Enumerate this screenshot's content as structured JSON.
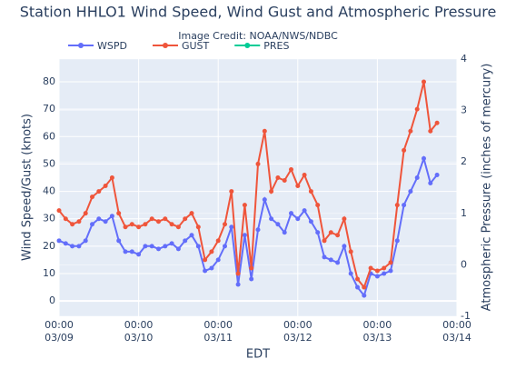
{
  "chart_data": {
    "type": "line",
    "title": "Station HHLO1 Wind Speed, Wind Gust and Atmospheric Pressure",
    "annotation": "Image Credit: NOAA/NWS/NDBC",
    "x_label": "EDT",
    "y_label": "Wind Speed/Gust (knots)",
    "y2_label": "Atmospheric Pressure (inches of mercury)",
    "x": [
      "03/09 00:00",
      "03/09 02:00",
      "03/09 04:00",
      "03/09 06:00",
      "03/09 08:00",
      "03/09 10:00",
      "03/09 12:00",
      "03/09 14:00",
      "03/09 16:00",
      "03/09 18:00",
      "03/09 20:00",
      "03/09 22:00",
      "03/10 00:00",
      "03/10 02:00",
      "03/10 04:00",
      "03/10 06:00",
      "03/10 08:00",
      "03/10 10:00",
      "03/10 12:00",
      "03/10 14:00",
      "03/10 16:00",
      "03/10 18:00",
      "03/10 20:00",
      "03/10 22:00",
      "03/11 00:00",
      "03/11 02:00",
      "03/11 04:00",
      "03/11 06:00",
      "03/11 08:00",
      "03/11 10:00",
      "03/11 12:00",
      "03/11 14:00",
      "03/11 16:00",
      "03/11 18:00",
      "03/11 20:00",
      "03/11 22:00",
      "03/12 00:00",
      "03/12 02:00",
      "03/12 04:00",
      "03/12 06:00",
      "03/12 08:00",
      "03/12 10:00",
      "03/12 12:00",
      "03/12 14:00",
      "03/12 16:00",
      "03/12 18:00",
      "03/12 20:00",
      "03/12 22:00",
      "03/13 00:00",
      "03/13 02:00",
      "03/13 04:00",
      "03/13 06:00",
      "03/13 08:00",
      "03/13 10:00",
      "03/13 12:00",
      "03/13 14:00",
      "03/13 16:00",
      "03/13 18:00"
    ],
    "series": [
      {
        "name": "WSPD",
        "color": "#636efa",
        "values": [
          22,
          21,
          20,
          20,
          22,
          28,
          30,
          29,
          31,
          22,
          18,
          18,
          17,
          20,
          20,
          19,
          20,
          21,
          19,
          22,
          24,
          20,
          11,
          12,
          15,
          20,
          27,
          6,
          24,
          8,
          26,
          37,
          30,
          28,
          25,
          32,
          30,
          33,
          29,
          25,
          16,
          15,
          14,
          20,
          10,
          5,
          2,
          10,
          9,
          10,
          11,
          22,
          35,
          40,
          45,
          52,
          43,
          46
        ]
      },
      {
        "name": "GUST",
        "color": "#ef553b",
        "values": [
          33,
          30,
          28,
          29,
          32,
          38,
          40,
          42,
          45,
          32,
          27,
          28,
          27,
          28,
          30,
          29,
          30,
          28,
          27,
          30,
          32,
          27,
          15,
          18,
          22,
          28,
          40,
          10,
          35,
          12,
          50,
          62,
          40,
          45,
          44,
          48,
          42,
          46,
          40,
          35,
          22,
          25,
          24,
          30,
          18,
          8,
          5,
          12,
          11,
          12,
          14,
          35,
          55,
          62,
          70,
          80,
          62,
          65
        ]
      },
      {
        "name": "PRES",
        "color": "#00cc96",
        "axis": "y2",
        "values": [
          null,
          null,
          null,
          null,
          null,
          null,
          null,
          null,
          null,
          null,
          null,
          null,
          null,
          null,
          null,
          null,
          null,
          null,
          null,
          null,
          null,
          null,
          null,
          null,
          null,
          null,
          null,
          null,
          null,
          null,
          null,
          null,
          null,
          null,
          null,
          null,
          null,
          null,
          null,
          null,
          null,
          null,
          null,
          null,
          null,
          null,
          null,
          null,
          null,
          null,
          null,
          null,
          null,
          null,
          null,
          null,
          null,
          null
        ]
      }
    ],
    "xlim": [
      "03/09 00:00",
      "03/14 00:00"
    ],
    "xticks": [
      {
        "value": "03/09 00:00",
        "label": "00:00 03/09"
      },
      {
        "value": "03/10 00:00",
        "label": "00:00 03/10"
      },
      {
        "value": "03/11 00:00",
        "label": "00:00 03/11"
      },
      {
        "value": "03/12 00:00",
        "label": "00:00 03/12"
      },
      {
        "value": "03/13 00:00",
        "label": "00:00 03/13"
      },
      {
        "value": "03/14 00:00",
        "label": "00:00 03/14"
      }
    ],
    "ylim": [
      -5.6,
      88.3
    ],
    "yticks": [
      0,
      10,
      20,
      30,
      40,
      50,
      60,
      70,
      80
    ],
    "y2lim": [
      -1,
      4
    ],
    "y2ticks": [
      -1,
      0,
      1,
      2,
      3,
      4
    ],
    "grid": true,
    "legend": "top-left"
  }
}
